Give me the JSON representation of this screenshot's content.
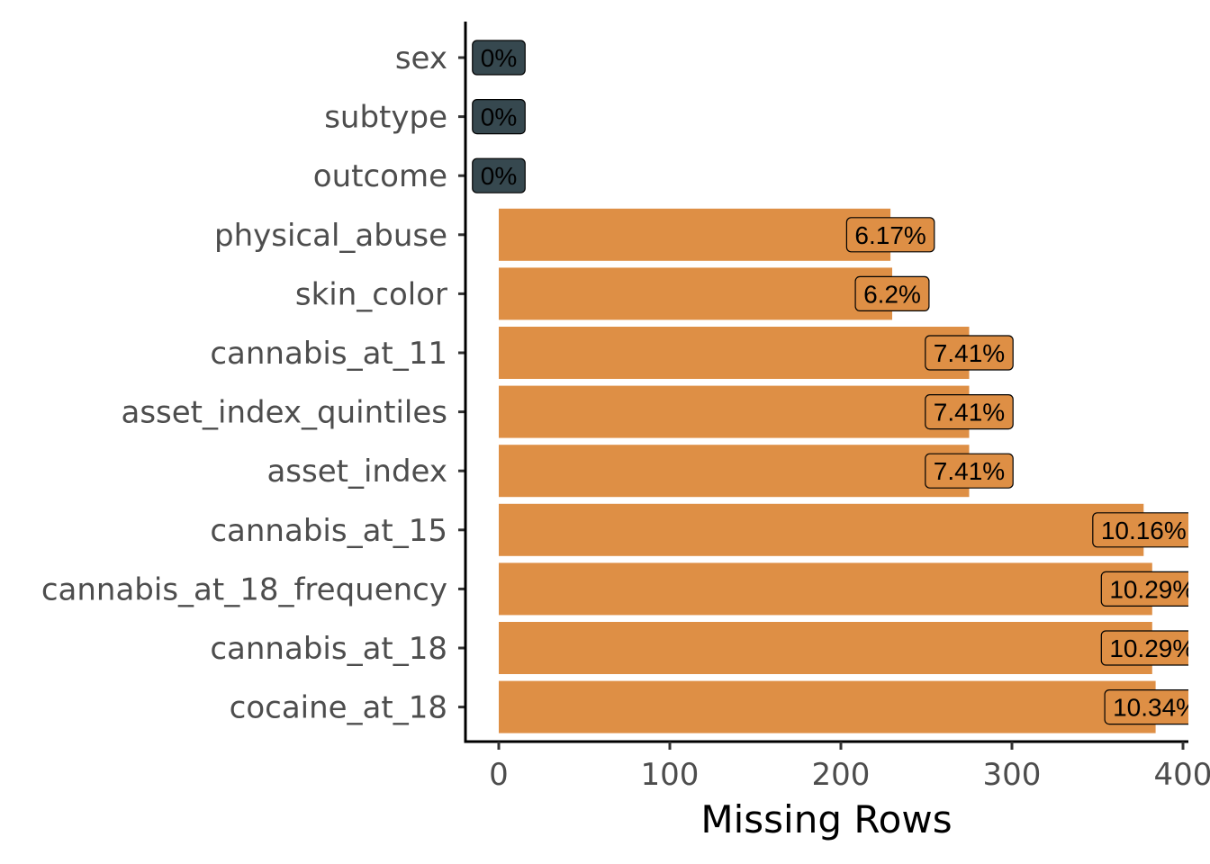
{
  "chart_data": {
    "type": "bar",
    "orientation": "horizontal",
    "xlabel": "Missing Rows",
    "ylabel": "",
    "xlim": [
      0,
      400
    ],
    "xticks": [
      0,
      100,
      200,
      300,
      400
    ],
    "grid": false,
    "categories": [
      "sex",
      "subtype",
      "outcome",
      "physical_abuse",
      "skin_color",
      "cannabis_at_11",
      "asset_index_quintiles",
      "asset_index",
      "cannabis_at_15",
      "cannabis_at_18_frequency",
      "cannabis_at_18",
      "cocaine_at_18"
    ],
    "values": [
      0,
      0,
      0,
      229,
      230,
      275,
      275,
      275,
      377,
      382,
      382,
      384
    ],
    "labels": [
      "0%",
      "0%",
      "0%",
      "6.17%",
      "6.2%",
      "7.41%",
      "7.41%",
      "7.41%",
      "10.16%",
      "10.29%",
      "10.29%",
      "10.34%"
    ],
    "colors": {
      "present": "#DE8F45",
      "zero": "#36484F",
      "axis": "#000000"
    }
  }
}
